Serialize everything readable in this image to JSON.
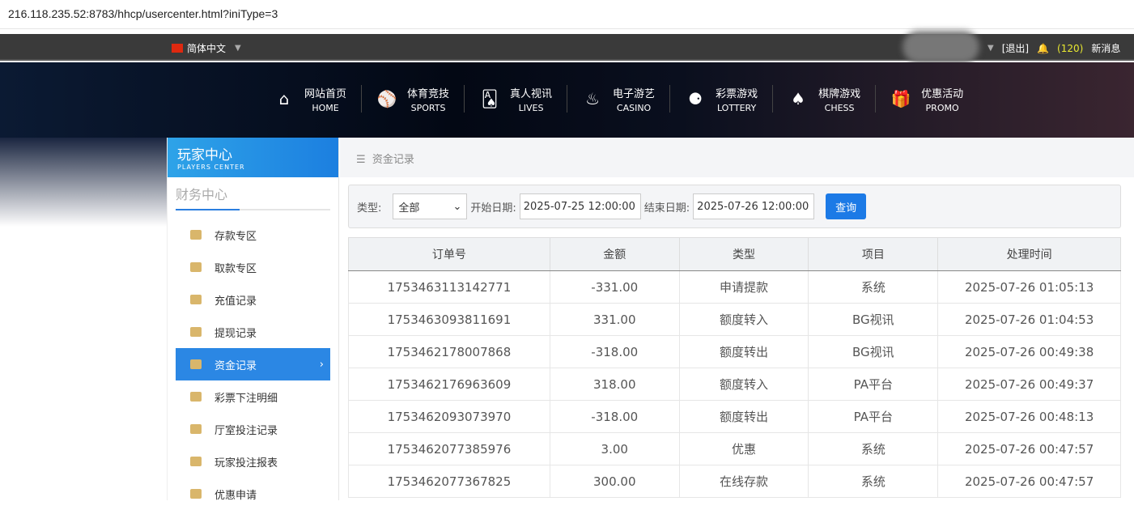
{
  "url": "216.118.235.52:8783/hhcp/usercenter.html?iniType=3",
  "topbar": {
    "language": "简体中文",
    "logout": "[退出]",
    "message_count": "(120)",
    "messages": "新消息"
  },
  "nav": [
    {
      "cn": "网站首页",
      "en": "HOME",
      "icon": "home-icon",
      "glyph": "⌂"
    },
    {
      "cn": "体育竞技",
      "en": "SPORTS",
      "icon": "ball-icon",
      "glyph": "⚾"
    },
    {
      "cn": "真人视讯",
      "en": "LIVES",
      "icon": "cards-icon",
      "glyph": "🂡"
    },
    {
      "cn": "电子游艺",
      "en": "CASINO",
      "icon": "joystick-icon",
      "glyph": "♨"
    },
    {
      "cn": "彩票游戏",
      "en": "LOTTERY",
      "icon": "lottery-balls-icon",
      "glyph": "⚈"
    },
    {
      "cn": "棋牌游戏",
      "en": "CHESS",
      "icon": "spade-icon",
      "glyph": "♠"
    },
    {
      "cn": "优惠活动",
      "en": "PROMO",
      "icon": "gift-icon",
      "glyph": "🎁"
    }
  ],
  "sidebar": {
    "title": "玩家中心",
    "subtitle": "PLAYERS CENTER",
    "section": "财务中心",
    "items": [
      {
        "label": "存款专区"
      },
      {
        "label": "取款专区"
      },
      {
        "label": "充值记录"
      },
      {
        "label": "提现记录"
      },
      {
        "label": "资金记录",
        "active": true
      },
      {
        "label": "彩票下注明细"
      },
      {
        "label": "厅室投注记录"
      },
      {
        "label": "玩家投注报表"
      },
      {
        "label": "优惠申请"
      }
    ]
  },
  "breadcrumb": "资金记录",
  "filter": {
    "type_label": "类型:",
    "type_value": "全部",
    "start_label": "开始日期:",
    "start_value": "2025-07-25 12:00:00",
    "end_label": "结束日期:",
    "end_value": "2025-07-26 12:00:00",
    "query": "查询"
  },
  "table": {
    "headers": [
      "订单号",
      "金额",
      "类型",
      "项目",
      "处理时间"
    ],
    "rows": [
      [
        "1753463113142771",
        "-331.00",
        "申请提款",
        "系统",
        "2025-07-26 01:05:13"
      ],
      [
        "1753463093811691",
        "331.00",
        "额度转入",
        "BG视讯",
        "2025-07-26 01:04:53"
      ],
      [
        "1753462178007868",
        "-318.00",
        "额度转出",
        "BG视讯",
        "2025-07-26 00:49:38"
      ],
      [
        "1753462176963609",
        "318.00",
        "额度转入",
        "PA平台",
        "2025-07-26 00:49:37"
      ],
      [
        "1753462093073970",
        "-318.00",
        "额度转出",
        "PA平台",
        "2025-07-26 00:48:13"
      ],
      [
        "1753462077385976",
        "3.00",
        "优惠",
        "系统",
        "2025-07-26 00:47:57"
      ],
      [
        "1753462077367825",
        "300.00",
        "在线存款",
        "系统",
        "2025-07-26 00:47:57"
      ]
    ]
  }
}
